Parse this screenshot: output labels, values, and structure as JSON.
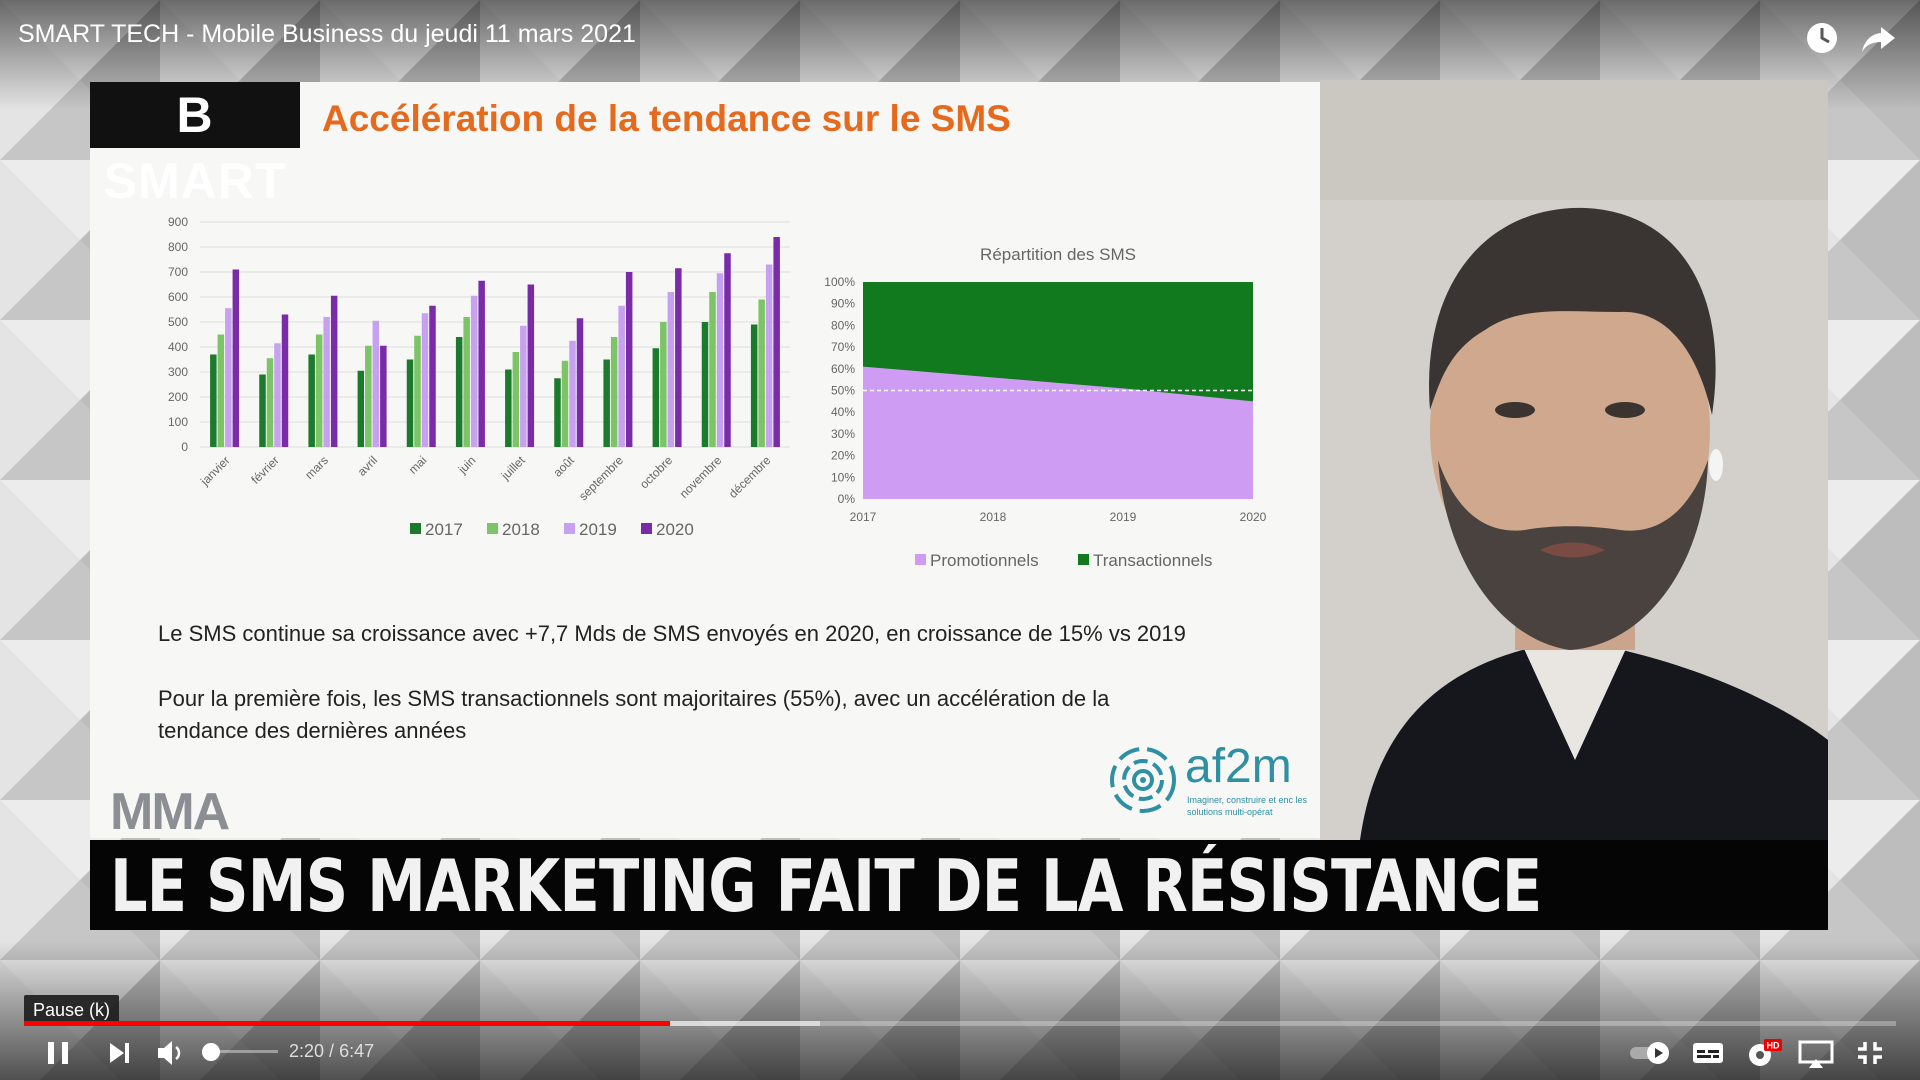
{
  "video": {
    "title": "SMART TECH - Mobile Business du jeudi 11 mars 2021"
  },
  "slide": {
    "brand": "B SMART",
    "title": "Accélération de la tendance sur le SMS",
    "text1": "Le SMS continue sa croissance avec +7,7 Mds de SMS envoyés en 2020, en croissance de 15% vs 2019",
    "text2_line1": "Pour la première fois, les SMS transactionnels sont majoritaires (55%), avec un accélération de la",
    "text2_line2": "tendance des dernières années",
    "logo_left": "MMA",
    "logo_right": "af2m",
    "logo_right_tagline": "Imaginer, construire et enc les solutions multi-opérat"
  },
  "lower_third": {
    "headline": "LE SMS MARKETING FAIT DE LA RÉSISTANCE"
  },
  "player": {
    "tooltip": "Pause (k)",
    "current_time": "2:20",
    "duration": "6:47",
    "time_separator": " / ",
    "progress_played": 0.345,
    "progress_buffered": 0.425,
    "volume": 0.05,
    "hd_badge": "HD",
    "icons": [
      "clock-icon",
      "share-icon",
      "pause-icon",
      "next-icon",
      "volume-icon",
      "autoplay-toggle-icon",
      "captions-icon",
      "settings-icon",
      "miniplayer-icon",
      "fullscreen-exit-icon"
    ]
  },
  "colors": {
    "title_orange": "#e66a1e",
    "series_2017": "#1b7a2c",
    "series_2018": "#7cc466",
    "series_2019": "#c7a1f0",
    "series_2020": "#7a2ba8",
    "promo": "#cf9cf3",
    "trans": "#127a1e",
    "progress": "#ff0000"
  },
  "chart_data": [
    {
      "type": "bar",
      "title": "",
      "categories": [
        "janvier",
        "février",
        "mars",
        "avril",
        "mai",
        "juin",
        "juillet",
        "août",
        "septembre",
        "octobre",
        "novembre",
        "décembre"
      ],
      "series": [
        {
          "name": "2017",
          "values": [
            370,
            290,
            370,
            305,
            350,
            440,
            310,
            275,
            350,
            395,
            500,
            490
          ]
        },
        {
          "name": "2018",
          "values": [
            450,
            355,
            450,
            405,
            445,
            520,
            380,
            345,
            440,
            500,
            620,
            590
          ]
        },
        {
          "name": "2019",
          "values": [
            555,
            415,
            520,
            505,
            535,
            605,
            485,
            425,
            565,
            620,
            695,
            730
          ]
        },
        {
          "name": "2020",
          "values": [
            710,
            530,
            605,
            405,
            565,
            665,
            650,
            515,
            700,
            715,
            775,
            840
          ]
        }
      ],
      "yticks": [
        "0",
        "100",
        "200",
        "300",
        "400",
        "500",
        "600",
        "700",
        "800",
        "900"
      ],
      "ylim": [
        0,
        900
      ],
      "grid": true,
      "legend": "bottom"
    },
    {
      "type": "area",
      "title": "Répartition des SMS",
      "x": [
        2017,
        2018,
        2019,
        2020
      ],
      "series": [
        {
          "name": "Promotionnels",
          "values": [
            61,
            56,
            51,
            45
          ]
        },
        {
          "name": "Transactionnels",
          "values": [
            39,
            44,
            49,
            55
          ]
        }
      ],
      "stacked": true,
      "yticks": [
        "0%",
        "10%",
        "20%",
        "30%",
        "40%",
        "50%",
        "60%",
        "70%",
        "80%",
        "90%",
        "100%"
      ],
      "ylim": [
        0,
        100
      ],
      "reference_line": 50,
      "legend": "bottom"
    }
  ]
}
